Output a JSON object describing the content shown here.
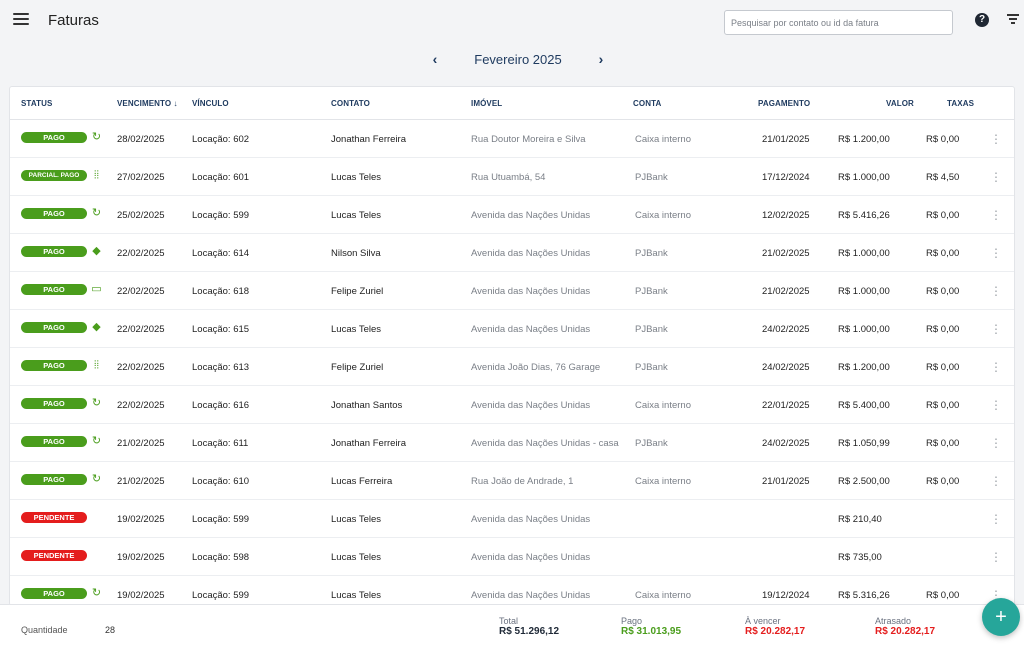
{
  "header": {
    "title": "Faturas",
    "search_placeholder": "Pesquisar por contato ou id da fatura",
    "help_glyph": "?"
  },
  "month_nav": {
    "label": "Fevereiro 2025",
    "prev_glyph": "‹",
    "next_glyph": "›"
  },
  "table": {
    "columns": {
      "status": "STATUS",
      "due": "VENCIMENTO ↓",
      "link": "VÍNCULO",
      "contact": "CONTATO",
      "property": "IMÓVEL",
      "account": "CONTA",
      "payment": "PAGAMENTO",
      "value": "VALOR",
      "fees": "TAXAS"
    },
    "rows": [
      {
        "status": "PAGO",
        "status_type": "paid",
        "method_icon": "cash-sync-icon",
        "method_glyph": "↻",
        "due": "28/02/2025",
        "link": "Locação: 602",
        "contact": "Jonathan Ferreira",
        "property": "Rua Doutor Moreira e Silva",
        "account": "Caixa interno",
        "payment": "21/01/2025",
        "value": "R$ 1.200,00",
        "fees": "R$ 0,00"
      },
      {
        "status": "PARCIAL. PAGO",
        "status_type": "partial",
        "method_icon": "barcode-icon",
        "method_glyph": "⦙⦙",
        "due": "27/02/2025",
        "link": "Locação: 601",
        "contact": "Lucas Teles",
        "property": "Rua Utuambá, 54",
        "account": "PJBank",
        "payment": "17/12/2024",
        "value": "R$ 1.000,00",
        "fees": "R$ 4,50"
      },
      {
        "status": "PAGO",
        "status_type": "paid",
        "method_icon": "cash-sync-icon",
        "method_glyph": "↻",
        "due": "25/02/2025",
        "link": "Locação: 599",
        "contact": "Lucas Teles",
        "property": "Avenida das Nações Unidas",
        "account": "Caixa interno",
        "payment": "12/02/2025",
        "value": "R$ 5.416,26",
        "fees": "R$ 0,00"
      },
      {
        "status": "PAGO",
        "status_type": "paid",
        "method_icon": "pix-icon",
        "method_glyph": "◆",
        "due": "22/02/2025",
        "link": "Locação: 614",
        "contact": "Nilson Silva",
        "property": "Avenida das Nações Unidas",
        "account": "PJBank",
        "payment": "21/02/2025",
        "value": "R$ 1.000,00",
        "fees": "R$ 0,00"
      },
      {
        "status": "PAGO",
        "status_type": "paid",
        "method_icon": "credit-card-icon",
        "method_glyph": "▭",
        "due": "22/02/2025",
        "link": "Locação: 618",
        "contact": "Felipe Zuriel",
        "property": "Avenida das Nações Unidas",
        "account": "PJBank",
        "payment": "21/02/2025",
        "value": "R$ 1.000,00",
        "fees": "R$ 0,00"
      },
      {
        "status": "PAGO",
        "status_type": "paid",
        "method_icon": "pix-icon",
        "method_glyph": "◆",
        "due": "22/02/2025",
        "link": "Locação: 615",
        "contact": "Lucas Teles",
        "property": "Avenida das Nações Unidas",
        "account": "PJBank",
        "payment": "24/02/2025",
        "value": "R$ 1.000,00",
        "fees": "R$ 0,00"
      },
      {
        "status": "PAGO",
        "status_type": "paid",
        "method_icon": "barcode-icon",
        "method_glyph": "⦙⦙",
        "due": "22/02/2025",
        "link": "Locação: 613",
        "contact": "Felipe Zuriel",
        "property": "Avenida João Dias, 76 Garage",
        "account": "PJBank",
        "payment": "24/02/2025",
        "value": "R$ 1.200,00",
        "fees": "R$ 0,00"
      },
      {
        "status": "PAGO",
        "status_type": "paid",
        "method_icon": "cash-sync-icon",
        "method_glyph": "↻",
        "due": "22/02/2025",
        "link": "Locação: 616",
        "contact": "Jonathan Santos",
        "property": "Avenida das Nações Unidas",
        "account": "Caixa interno",
        "payment": "22/01/2025",
        "value": "R$ 5.400,00",
        "fees": "R$ 0,00"
      },
      {
        "status": "PAGO",
        "status_type": "paid",
        "method_icon": "cash-sync-icon",
        "method_glyph": "↻",
        "due": "21/02/2025",
        "link": "Locação: 611",
        "contact": "Jonathan Ferreira",
        "property": "Avenida das Nações Unidas - casa",
        "account": "PJBank",
        "payment": "24/02/2025",
        "value": "R$ 1.050,99",
        "fees": "R$ 0,00"
      },
      {
        "status": "PAGO",
        "status_type": "paid",
        "method_icon": "cash-sync-icon",
        "method_glyph": "↻",
        "due": "21/02/2025",
        "link": "Locação: 610",
        "contact": "Lucas Ferreira",
        "property": "Rua João de Andrade, 1",
        "account": "Caixa interno",
        "payment": "21/01/2025",
        "value": "R$ 2.500,00",
        "fees": "R$ 0,00"
      },
      {
        "status": "PENDENTE",
        "status_type": "pending",
        "method_icon": "",
        "method_glyph": "",
        "due": "19/02/2025",
        "link": "Locação: 599",
        "contact": "Lucas Teles",
        "property": "Avenida das Nações Unidas",
        "account": "",
        "payment": "",
        "value": "R$ 210,40",
        "fees": ""
      },
      {
        "status": "PENDENTE",
        "status_type": "pending",
        "method_icon": "",
        "method_glyph": "",
        "due": "19/02/2025",
        "link": "Locação: 598",
        "contact": "Lucas Teles",
        "property": "Avenida das Nações Unidas",
        "account": "",
        "payment": "",
        "value": "R$ 735,00",
        "fees": ""
      },
      {
        "status": "PAGO",
        "status_type": "paid",
        "method_icon": "cash-sync-icon",
        "method_glyph": "↻",
        "due": "19/02/2025",
        "link": "Locação: 599",
        "contact": "Lucas Teles",
        "property": "Avenida das Nações Unidas",
        "account": "Caixa interno",
        "payment": "19/12/2024",
        "value": "R$ 5.316,26",
        "fees": "R$ 0,00"
      }
    ]
  },
  "footer": {
    "quantity_label": "Quantidade",
    "quantity": "28",
    "totals": [
      {
        "label": "Total",
        "value": "R$ 51.296,12",
        "color": "#1f2937"
      },
      {
        "label": "Pago",
        "value": "R$ 31.013,95",
        "color": "#4a9d1c"
      },
      {
        "label": "À vencer",
        "value": "R$ 20.282,17",
        "color": "#e41d1d"
      },
      {
        "label": "Atrasado",
        "value": "R$ 20.282,17",
        "color": "#e41d1d"
      }
    ]
  },
  "fab": {
    "glyph": "+"
  }
}
